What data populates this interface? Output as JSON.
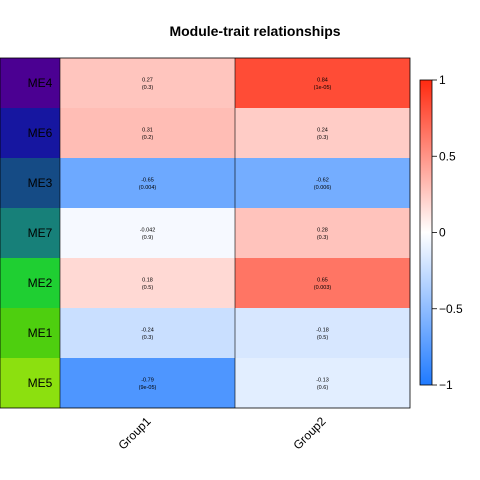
{
  "chart_data": {
    "type": "heatmap",
    "title": "Module-trait relationships",
    "rows": [
      "ME4",
      "ME6",
      "ME3",
      "ME7",
      "ME2",
      "ME1",
      "ME5"
    ],
    "row_colors": [
      "#4B0092",
      "#1616A0",
      "#154B85",
      "#178079",
      "#1FCF32",
      "#4ECF0F",
      "#8CE00F"
    ],
    "columns": [
      "Group1",
      "Group2"
    ],
    "values": [
      [
        0.27,
        0.84
      ],
      [
        0.31,
        0.24
      ],
      [
        -0.65,
        -0.62
      ],
      [
        -0.042,
        0.28
      ],
      [
        0.18,
        0.65
      ],
      [
        -0.24,
        -0.18
      ],
      [
        -0.79,
        -0.13
      ]
    ],
    "cell_text": [
      [
        {
          "value": "0.27",
          "p": "(0.3)"
        },
        {
          "value": "0.84",
          "p": "(1e-05)"
        }
      ],
      [
        {
          "value": "0.31",
          "p": "(0.2)"
        },
        {
          "value": "0.24",
          "p": "(0.3)"
        }
      ],
      [
        {
          "value": "-0.65",
          "p": "(0.004)"
        },
        {
          "value": "-0.62",
          "p": "(0.006)"
        }
      ],
      [
        {
          "value": "-0.042",
          "p": "(0.9)"
        },
        {
          "value": "0.28",
          "p": "(0.3)"
        }
      ],
      [
        {
          "value": "0.18",
          "p": "(0.5)"
        },
        {
          "value": "0.65",
          "p": "(0.003)"
        }
      ],
      [
        {
          "value": "-0.24",
          "p": "(0.3)"
        },
        {
          "value": "-0.18",
          "p": "(0.5)"
        }
      ],
      [
        {
          "value": "-0.79",
          "p": "(9e-05)"
        },
        {
          "value": "-0.13",
          "p": "(0.6)"
        }
      ]
    ],
    "colorscale": {
      "range": [
        -1,
        1
      ],
      "low": "#1F7AFF",
      "mid": "#FFFFFF",
      "high": "#FF2A10"
    },
    "legend": {
      "ticks": [
        1,
        0.5,
        0,
        -0.5,
        -1
      ],
      "tick_labels": [
        "1",
        "0.5",
        "0",
        "−0.5",
        "−1"
      ]
    }
  }
}
